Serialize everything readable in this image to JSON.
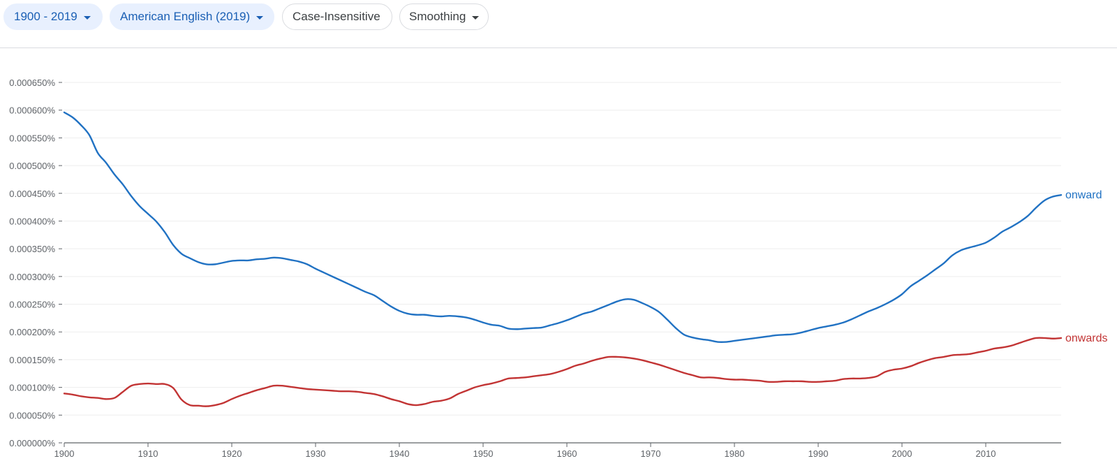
{
  "toolbar": {
    "year_range": "1900 - 2019",
    "corpus": "American English (2019)",
    "case": "Case-Insensitive",
    "smoothing": "Smoothing"
  },
  "colors": {
    "onward": "#2172c3",
    "onwards": "#c23434",
    "chip_bg": "#e8f0fe",
    "chip_text": "#1a5fb4"
  },
  "chart_data": {
    "type": "line",
    "title": "",
    "xlabel": "",
    "ylabel": "",
    "xlim": [
      1900,
      2019
    ],
    "ylim": [
      0,
      0.00065
    ],
    "x_ticks": [
      1900,
      1910,
      1920,
      1930,
      1940,
      1950,
      1960,
      1970,
      1980,
      1990,
      2000,
      2010
    ],
    "y_ticks": [
      "0.000000%",
      "0.000050%",
      "0.000100%",
      "0.000150%",
      "0.000200%",
      "0.000250%",
      "0.000300%",
      "0.000350%",
      "0.000400%",
      "0.000450%",
      "0.000500%",
      "0.000550%",
      "0.000600%",
      "0.000650%"
    ],
    "grid": "horizontal",
    "legend": "inline-right",
    "series": [
      {
        "name": "onward",
        "x": [
          1900,
          1901,
          1902,
          1903,
          1904,
          1905,
          1906,
          1907,
          1908,
          1909,
          1910,
          1911,
          1912,
          1913,
          1914,
          1915,
          1916,
          1917,
          1918,
          1919,
          1920,
          1921,
          1922,
          1923,
          1924,
          1925,
          1926,
          1927,
          1928,
          1929,
          1930,
          1931,
          1932,
          1933,
          1934,
          1935,
          1936,
          1937,
          1938,
          1939,
          1940,
          1941,
          1942,
          1943,
          1944,
          1945,
          1946,
          1947,
          1948,
          1949,
          1950,
          1951,
          1952,
          1953,
          1954,
          1955,
          1956,
          1957,
          1958,
          1959,
          1960,
          1961,
          1962,
          1963,
          1964,
          1965,
          1966,
          1967,
          1968,
          1969,
          1970,
          1971,
          1972,
          1973,
          1974,
          1975,
          1976,
          1977,
          1978,
          1979,
          1980,
          1981,
          1982,
          1983,
          1984,
          1985,
          1986,
          1987,
          1988,
          1989,
          1990,
          1991,
          1992,
          1993,
          1994,
          1995,
          1996,
          1997,
          1998,
          1999,
          2000,
          2001,
          2002,
          2003,
          2004,
          2005,
          2006,
          2007,
          2008,
          2009,
          2010,
          2011,
          2012,
          2013,
          2014,
          2015,
          2016,
          2017,
          2018,
          2019
        ],
        "values": [
          0.000596,
          0.000587,
          0.000573,
          0.000555,
          0.000523,
          0.000505,
          0.000484,
          0.000466,
          0.000445,
          0.000427,
          0.000413,
          0.000399,
          0.00038,
          0.000357,
          0.000341,
          0.000333,
          0.000326,
          0.000322,
          0.000322,
          0.000325,
          0.000328,
          0.000329,
          0.000329,
          0.000331,
          0.000332,
          0.000334,
          0.000333,
          0.00033,
          0.000327,
          0.000322,
          0.000314,
          0.000307,
          0.0003,
          0.000293,
          0.000286,
          0.000279,
          0.000272,
          0.000266,
          0.000256,
          0.000246,
          0.000238,
          0.000233,
          0.000231,
          0.000231,
          0.000229,
          0.000228,
          0.000229,
          0.000228,
          0.000226,
          0.000222,
          0.000217,
          0.000213,
          0.000211,
          0.000206,
          0.000205,
          0.000206,
          0.000207,
          0.000208,
          0.000212,
          0.000216,
          0.000221,
          0.000227,
          0.000233,
          0.000237,
          0.000243,
          0.000249,
          0.000255,
          0.000259,
          0.000258,
          0.000252,
          0.000245,
          0.000236,
          0.000222,
          0.000207,
          0.000195,
          0.00019,
          0.000187,
          0.000185,
          0.000182,
          0.000182,
          0.000184,
          0.000186,
          0.000188,
          0.00019,
          0.000192,
          0.000194,
          0.000195,
          0.000196,
          0.000199,
          0.000203,
          0.000207,
          0.00021,
          0.000213,
          0.000217,
          0.000223,
          0.00023,
          0.000237,
          0.000243,
          0.00025,
          0.000258,
          0.000268,
          0.000282,
          0.000292,
          0.000302,
          0.000313,
          0.000324,
          0.000338,
          0.000347,
          0.000352,
          0.000356,
          0.000361,
          0.00037,
          0.000381,
          0.000389,
          0.000398,
          0.000409,
          0.000424,
          0.000437,
          0.000444,
          0.000447
        ]
      },
      {
        "name": "onwards",
        "x": [
          1900,
          1901,
          1902,
          1903,
          1904,
          1905,
          1906,
          1907,
          1908,
          1909,
          1910,
          1911,
          1912,
          1913,
          1914,
          1915,
          1916,
          1917,
          1918,
          1919,
          1920,
          1921,
          1922,
          1923,
          1924,
          1925,
          1926,
          1927,
          1928,
          1929,
          1930,
          1931,
          1932,
          1933,
          1934,
          1935,
          1936,
          1937,
          1938,
          1939,
          1940,
          1941,
          1942,
          1943,
          1944,
          1945,
          1946,
          1947,
          1948,
          1949,
          1950,
          1951,
          1952,
          1953,
          1954,
          1955,
          1956,
          1957,
          1958,
          1959,
          1960,
          1961,
          1962,
          1963,
          1964,
          1965,
          1966,
          1967,
          1968,
          1969,
          1970,
          1971,
          1972,
          1973,
          1974,
          1975,
          1976,
          1977,
          1978,
          1979,
          1980,
          1981,
          1982,
          1983,
          1984,
          1985,
          1986,
          1987,
          1988,
          1989,
          1990,
          1991,
          1992,
          1993,
          1994,
          1995,
          1996,
          1997,
          1998,
          1999,
          2000,
          2001,
          2002,
          2003,
          2004,
          2005,
          2006,
          2007,
          2008,
          2009,
          2010,
          2011,
          2012,
          2013,
          2014,
          2015,
          2016,
          2017,
          2018,
          2019
        ],
        "values": [
          8.9e-05,
          8.7e-05,
          8.4e-05,
          8.2e-05,
          8.1e-05,
          7.9e-05,
          8.1e-05,
          9.2e-05,
          0.000103,
          0.000106,
          0.000107,
          0.000106,
          0.000106,
          9.9e-05,
          7.8e-05,
          6.8e-05,
          6.7e-05,
          6.6e-05,
          6.8e-05,
          7.2e-05,
          7.9e-05,
          8.5e-05,
          9e-05,
          9.5e-05,
          9.9e-05,
          0.000103,
          0.000103,
          0.000101,
          9.9e-05,
          9.7e-05,
          9.6e-05,
          9.5e-05,
          9.4e-05,
          9.3e-05,
          9.3e-05,
          9.2e-05,
          9e-05,
          8.8e-05,
          8.4e-05,
          7.9e-05,
          7.5e-05,
          7e-05,
          6.8e-05,
          7e-05,
          7.4e-05,
          7.6e-05,
          8e-05,
          8.8e-05,
          9.4e-05,
          0.0001,
          0.000104,
          0.000107,
          0.000111,
          0.000116,
          0.000117,
          0.000118,
          0.00012,
          0.000122,
          0.000124,
          0.000128,
          0.000133,
          0.000139,
          0.000143,
          0.000148,
          0.000152,
          0.000155,
          0.000155,
          0.000154,
          0.000152,
          0.000149,
          0.000145,
          0.000141,
          0.000136,
          0.000131,
          0.000126,
          0.000122,
          0.000118,
          0.000118,
          0.000117,
          0.000115,
          0.000114,
          0.000114,
          0.000113,
          0.000112,
          0.00011,
          0.00011,
          0.000111,
          0.000111,
          0.000111,
          0.00011,
          0.00011,
          0.000111,
          0.000112,
          0.000115,
          0.000116,
          0.000116,
          0.000117,
          0.00012,
          0.000128,
          0.000132,
          0.000134,
          0.000138,
          0.000144,
          0.000149,
          0.000153,
          0.000155,
          0.000158,
          0.000159,
          0.00016,
          0.000163,
          0.000166,
          0.00017,
          0.000172,
          0.000175,
          0.00018,
          0.000185,
          0.000189,
          0.000189,
          0.000188,
          0.000189
        ]
      }
    ]
  }
}
